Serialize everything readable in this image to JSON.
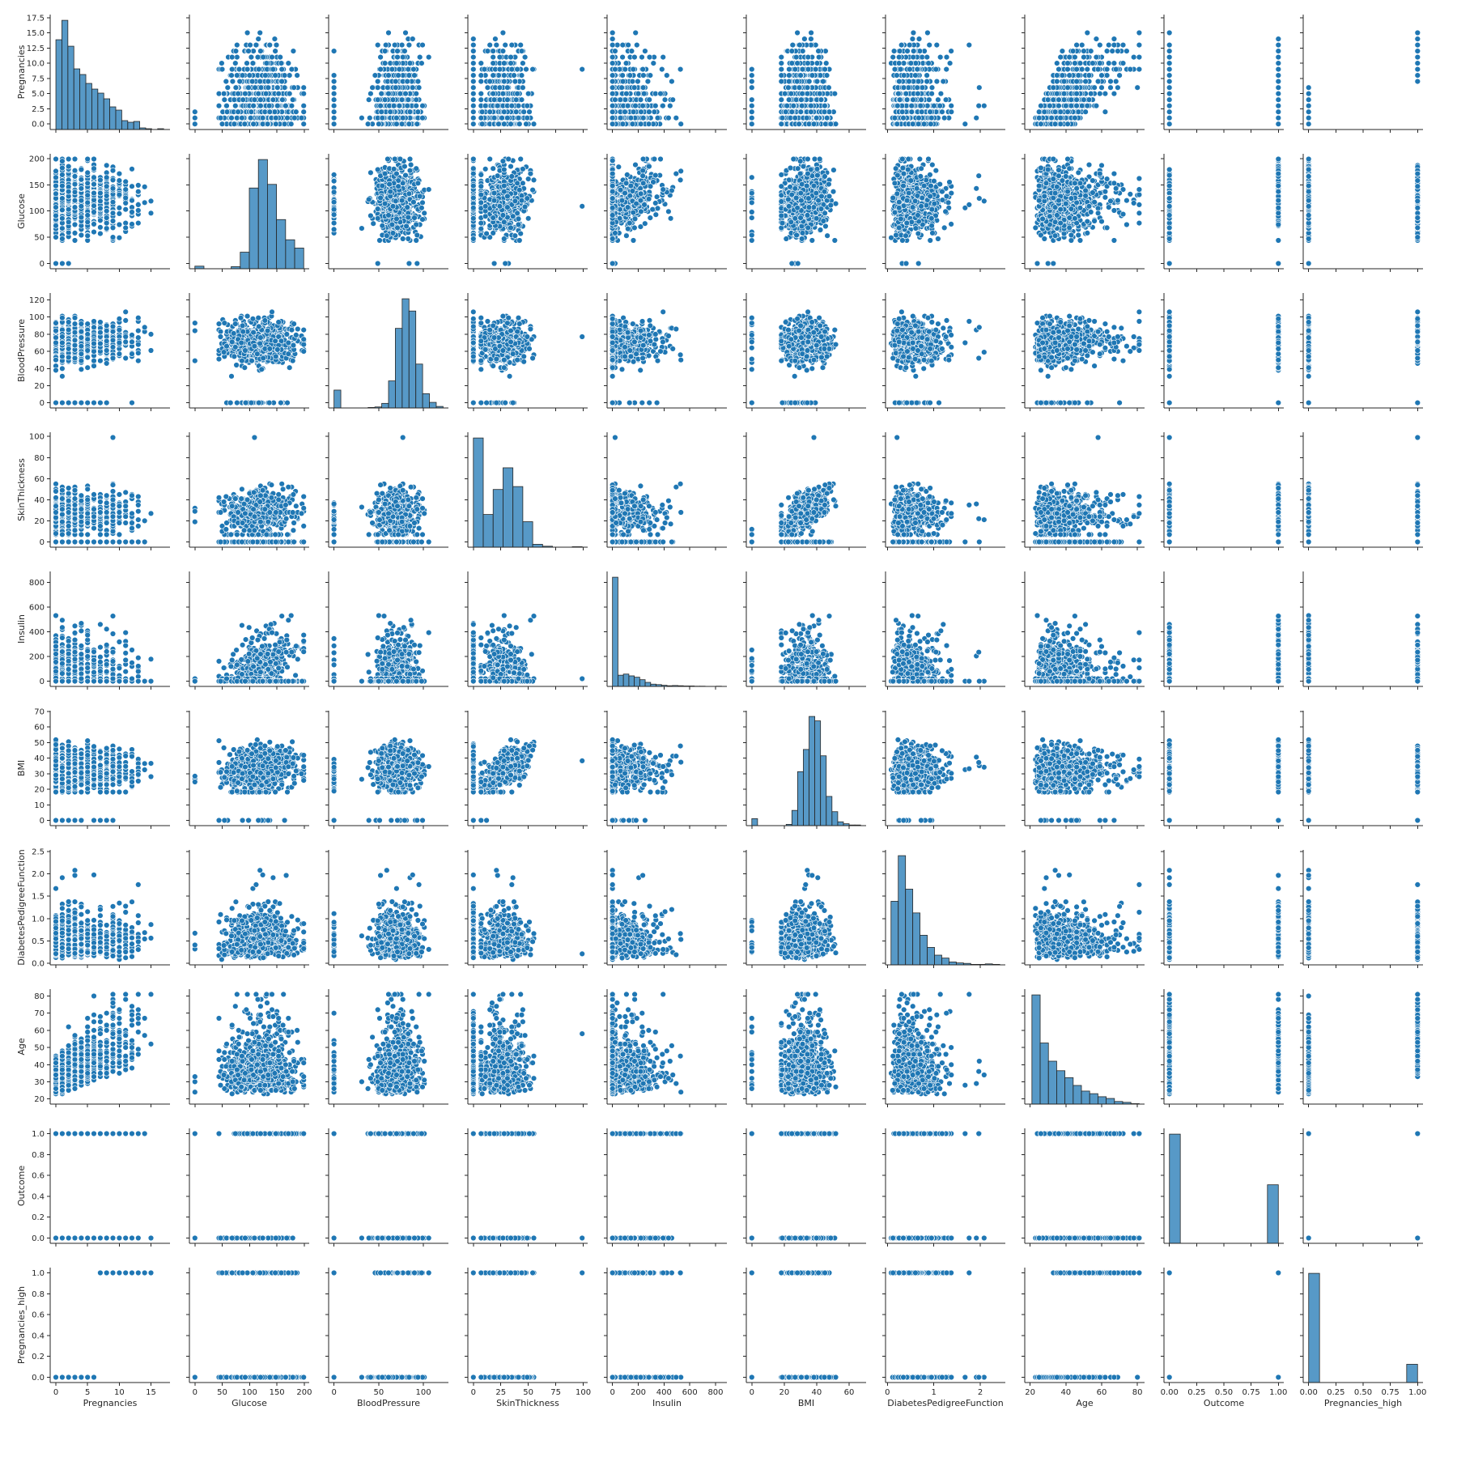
{
  "chart_data": {
    "type": "pairplot",
    "title": "",
    "color": "#1f77b4",
    "point_edge_color": "#ffffff",
    "variables": [
      "Pregnancies",
      "Glucose",
      "BloodPressure",
      "SkinThickness",
      "Insulin",
      "BMI",
      "DiabetesPedigreeFunction",
      "Age",
      "Outcome",
      "Pregnancies_high"
    ],
    "axes": {
      "Pregnancies": {
        "xlim": [
          -0.9,
          18.0
        ],
        "ylim": [
          -0.9,
          18.0
        ],
        "xticks": [
          "0",
          "5",
          "10",
          "15"
        ],
        "yticks": [
          "0.0",
          "2.5",
          "5.0",
          "7.5",
          "10.0",
          "12.5",
          "15.0",
          "17.5"
        ],
        "ytick_values": [
          0,
          2.5,
          5,
          7.5,
          10,
          12.5,
          15,
          17.5
        ],
        "xtick_values": [
          0,
          5,
          10,
          15
        ]
      },
      "Glucose": {
        "xlim": [
          -10,
          209
        ],
        "ylim": [
          -10,
          209
        ],
        "xticks": [
          "0",
          "50",
          "100",
          "150",
          "200"
        ],
        "yticks": [
          "0",
          "50",
          "100",
          "150",
          "200"
        ],
        "xtick_values": [
          0,
          50,
          100,
          150,
          200
        ],
        "ytick_values": [
          0,
          50,
          100,
          150,
          200
        ]
      },
      "BloodPressure": {
        "xlim": [
          -6,
          128
        ],
        "ylim": [
          -6,
          128
        ],
        "xticks": [
          "0",
          "50",
          "100"
        ],
        "yticks": [
          "0",
          "20",
          "40",
          "60",
          "80",
          "100",
          "120"
        ],
        "xtick_values": [
          0,
          50,
          100
        ],
        "ytick_values": [
          0,
          20,
          40,
          60,
          80,
          100,
          120
        ]
      },
      "SkinThickness": {
        "xlim": [
          -5,
          104
        ],
        "ylim": [
          -5,
          104
        ],
        "xticks": [
          "0",
          "25",
          "50",
          "75",
          "100"
        ],
        "yticks": [
          "0",
          "20",
          "40",
          "60",
          "80",
          "100"
        ],
        "xtick_values": [
          0,
          25,
          50,
          75,
          100
        ],
        "ytick_values": [
          0,
          20,
          40,
          60,
          80,
          100
        ]
      },
      "Insulin": {
        "xlim": [
          -42,
          888
        ],
        "ylim": [
          -42,
          888
        ],
        "xticks": [
          "0",
          "200",
          "400",
          "600",
          "800"
        ],
        "yticks": [
          "0",
          "200",
          "400",
          "600",
          "800"
        ],
        "xtick_values": [
          0,
          200,
          400,
          600,
          800
        ],
        "ytick_values": [
          0,
          200,
          400,
          600,
          800
        ]
      },
      "BMI": {
        "xlim": [
          -3.4,
          70.5
        ],
        "ylim": [
          -3.4,
          70.5
        ],
        "xticks": [
          "0",
          "20",
          "40",
          "60"
        ],
        "yticks": [
          "0",
          "10",
          "20",
          "30",
          "40",
          "50",
          "60",
          "70"
        ],
        "xtick_values": [
          0,
          20,
          40,
          60
        ],
        "ytick_values": [
          0,
          10,
          20,
          30,
          40,
          50,
          60,
          70
        ]
      },
      "DiabetesPedigreeFunction": {
        "xlim": [
          -0.04,
          2.54
        ],
        "ylim": [
          -0.04,
          2.54
        ],
        "xticks": [
          "0",
          "1",
          "2"
        ],
        "yticks": [
          "0.0",
          "0.5",
          "1.0",
          "1.5",
          "2.0",
          "2.5"
        ],
        "xtick_values": [
          0,
          1,
          2
        ],
        "ytick_values": [
          0,
          0.5,
          1,
          1.5,
          2,
          2.5
        ]
      },
      "Age": {
        "xlim": [
          17.0,
          84.0
        ],
        "ylim": [
          17.0,
          84.0
        ],
        "xticks": [
          "20",
          "40",
          "60",
          "80"
        ],
        "yticks": [
          "20",
          "30",
          "40",
          "50",
          "60",
          "70",
          "80"
        ],
        "xtick_values": [
          20,
          40,
          60,
          80
        ],
        "ytick_values": [
          20,
          30,
          40,
          50,
          60,
          70,
          80
        ]
      },
      "Outcome": {
        "xlim": [
          -0.05,
          1.05
        ],
        "ylim": [
          -0.05,
          1.05
        ],
        "xticks": [
          "0.00",
          "0.25",
          "0.50",
          "0.75",
          "1.00"
        ],
        "yticks": [
          "0.0",
          "0.2",
          "0.4",
          "0.6",
          "0.8",
          "1.0"
        ],
        "xtick_values": [
          0,
          0.25,
          0.5,
          0.75,
          1
        ],
        "ytick_values": [
          0,
          0.2,
          0.4,
          0.6,
          0.8,
          1
        ]
      },
      "Pregnancies_high": {
        "xlim": [
          -0.05,
          1.05
        ],
        "ylim": [
          -0.05,
          1.05
        ],
        "xticks": [
          "0.00",
          "0.25",
          "0.50",
          "0.75",
          "1.00"
        ],
        "yticks": [
          "0.0",
          "0.2",
          "0.4",
          "0.6",
          "0.8",
          "1.0"
        ],
        "xtick_values": [
          0,
          0.25,
          0.5,
          0.75,
          1
        ],
        "ytick_values": [
          0,
          0.2,
          0.4,
          0.6,
          0.8,
          1
        ]
      }
    },
    "histograms": {
      "Pregnancies": {
        "range": [
          0,
          17
        ],
        "counts": [
          111,
          135,
          103,
          75,
          68,
          57,
          50,
          45,
          38,
          28,
          24,
          11,
          9,
          10,
          2,
          1,
          0,
          1
        ]
      },
      "Glucose": {
        "range": [
          0,
          199
        ],
        "counts": [
          5,
          0,
          0,
          0,
          4,
          32,
          156,
          211,
          163,
          95,
          56,
          40
        ]
      },
      "BloodPressure": {
        "range": [
          0,
          122
        ],
        "counts": [
          35,
          0,
          0,
          0,
          0,
          1,
          2,
          9,
          53,
          156,
          214,
          190,
          86,
          28,
          11,
          3
        ]
      },
      "SkinThickness": {
        "range": [
          0,
          99
        ],
        "counts": [
          227,
          68,
          120,
          165,
          126,
          53,
          6,
          2,
          0,
          0,
          1
        ]
      },
      "Insulin": {
        "range": [
          0,
          846
        ],
        "counts": [
          487,
          50,
          55,
          47,
          41,
          30,
          18,
          10,
          8,
          5,
          3,
          4,
          3,
          2,
          2,
          1,
          1,
          0,
          0,
          1
        ]
      },
      "BMI": {
        "range": [
          0,
          67.1
        ],
        "counts": [
          11,
          0,
          0,
          0,
          0,
          0,
          2,
          24,
          85,
          120,
          172,
          165,
          110,
          46,
          22,
          6,
          3,
          1,
          1
        ]
      },
      "DiabetesPedigreeFunction": {
        "range": [
          0.078,
          2.42
        ],
        "counts": [
          131,
          225,
          156,
          107,
          61,
          36,
          20,
          14,
          6,
          4,
          3,
          1,
          1,
          2,
          1
        ]
      },
      "Age": {
        "range": [
          21,
          81
        ],
        "counts": [
          252,
          141,
          99,
          77,
          61,
          43,
          30,
          24,
          17,
          13,
          6,
          4,
          1
        ]
      },
      "Outcome": {
        "range": [
          0,
          1
        ],
        "counts": [
          500,
          0,
          0,
          0,
          0,
          0,
          0,
          0,
          0,
          268
        ]
      },
      "Pregnancies_high": {
        "range": [
          0,
          1
        ],
        "counts": [
          658,
          0,
          0,
          0,
          0,
          0,
          0,
          0,
          0,
          110
        ]
      }
    }
  }
}
